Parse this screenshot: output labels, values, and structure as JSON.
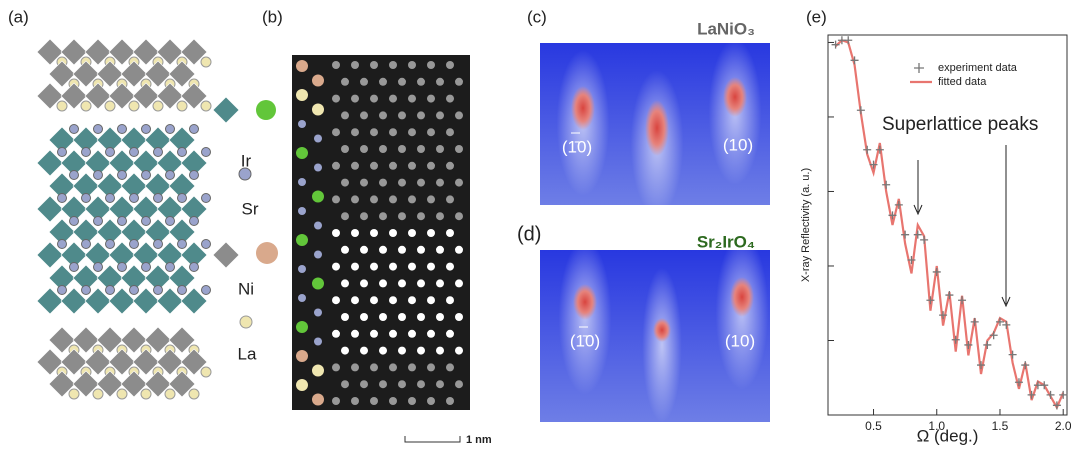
{
  "panels": {
    "a": "(a)",
    "b": "(b)",
    "c": "(c)",
    "d": "(d)",
    "e": "(e)"
  },
  "atoms": {
    "ir": "Ir",
    "sr": "Sr",
    "ni": "Ni",
    "la": "La"
  },
  "scale_bar": "1 nm",
  "rheed": {
    "c_title": "LaNiO₃",
    "d_title": "Sr₂IrO₄",
    "c_left": "(1̄0)",
    "c_right": "(10)",
    "d_left": "(1̄0)",
    "d_right": "(10)"
  },
  "chart_data": {
    "type": "scatter-line",
    "xlabel": "Ω (deg.)",
    "ylabel": "X-ray Reflectivity (a. u.)",
    "annotation": "Superlattice peaks",
    "log_scale": true,
    "x": [
      0.2,
      0.25,
      0.3,
      0.35,
      0.4,
      0.45,
      0.5,
      0.55,
      0.6,
      0.65,
      0.7,
      0.75,
      0.8,
      0.85,
      0.9,
      0.95,
      1.0,
      1.05,
      1.1,
      1.15,
      1.2,
      1.25,
      1.3,
      1.35,
      1.4,
      1.45,
      1.5,
      1.55,
      1.6,
      1.65,
      1.7,
      1.75,
      1.8,
      1.85,
      1.9,
      1.95,
      2.0
    ],
    "series": [
      {
        "name": "experiment data",
        "color": "#777777",
        "values": [
          -0.03,
          0.03,
          0.03,
          -0.24,
          -0.91,
          -1.44,
          -1.64,
          -1.44,
          -1.91,
          -2.32,
          -2.18,
          -2.58,
          -2.92,
          -2.58,
          -2.65,
          -3.46,
          -3.08,
          -3.66,
          -3.39,
          -3.99,
          -3.46,
          -4.06,
          -3.75,
          -4.33,
          -4.06,
          -3.93,
          -3.75,
          -3.79,
          -4.19,
          -4.56,
          -4.33,
          -4.73,
          -4.6,
          -4.6,
          -4.73,
          -4.87,
          -4.73
        ]
      },
      {
        "name": "fitted data",
        "color": "#e8756f",
        "values": [
          -0.05,
          0.03,
          0.0,
          -0.3,
          -0.95,
          -1.5,
          -1.75,
          -1.35,
          -2.0,
          -2.45,
          -2.1,
          -2.7,
          -3.1,
          -2.45,
          -2.6,
          -3.6,
          -3.0,
          -3.8,
          -3.35,
          -4.15,
          -3.4,
          -4.2,
          -3.7,
          -4.45,
          -4.0,
          -3.9,
          -3.7,
          -3.75,
          -4.3,
          -4.65,
          -4.3,
          -4.8,
          -4.55,
          -4.6,
          -4.75,
          -4.9,
          -4.7
        ]
      }
    ],
    "xlim": [
      0.14,
      2.03
    ],
    "xticks": [
      {
        "value": 0.5,
        "label": "0.5"
      },
      {
        "value": 1.0,
        "label": "1.0"
      },
      {
        "value": 1.5,
        "label": "1.5"
      },
      {
        "value": 2.0,
        "label": "2.0"
      }
    ],
    "ylim": [
      -5,
      0.1
    ],
    "yticks": [
      -5,
      -4,
      -3,
      -2,
      -1,
      0
    ]
  }
}
